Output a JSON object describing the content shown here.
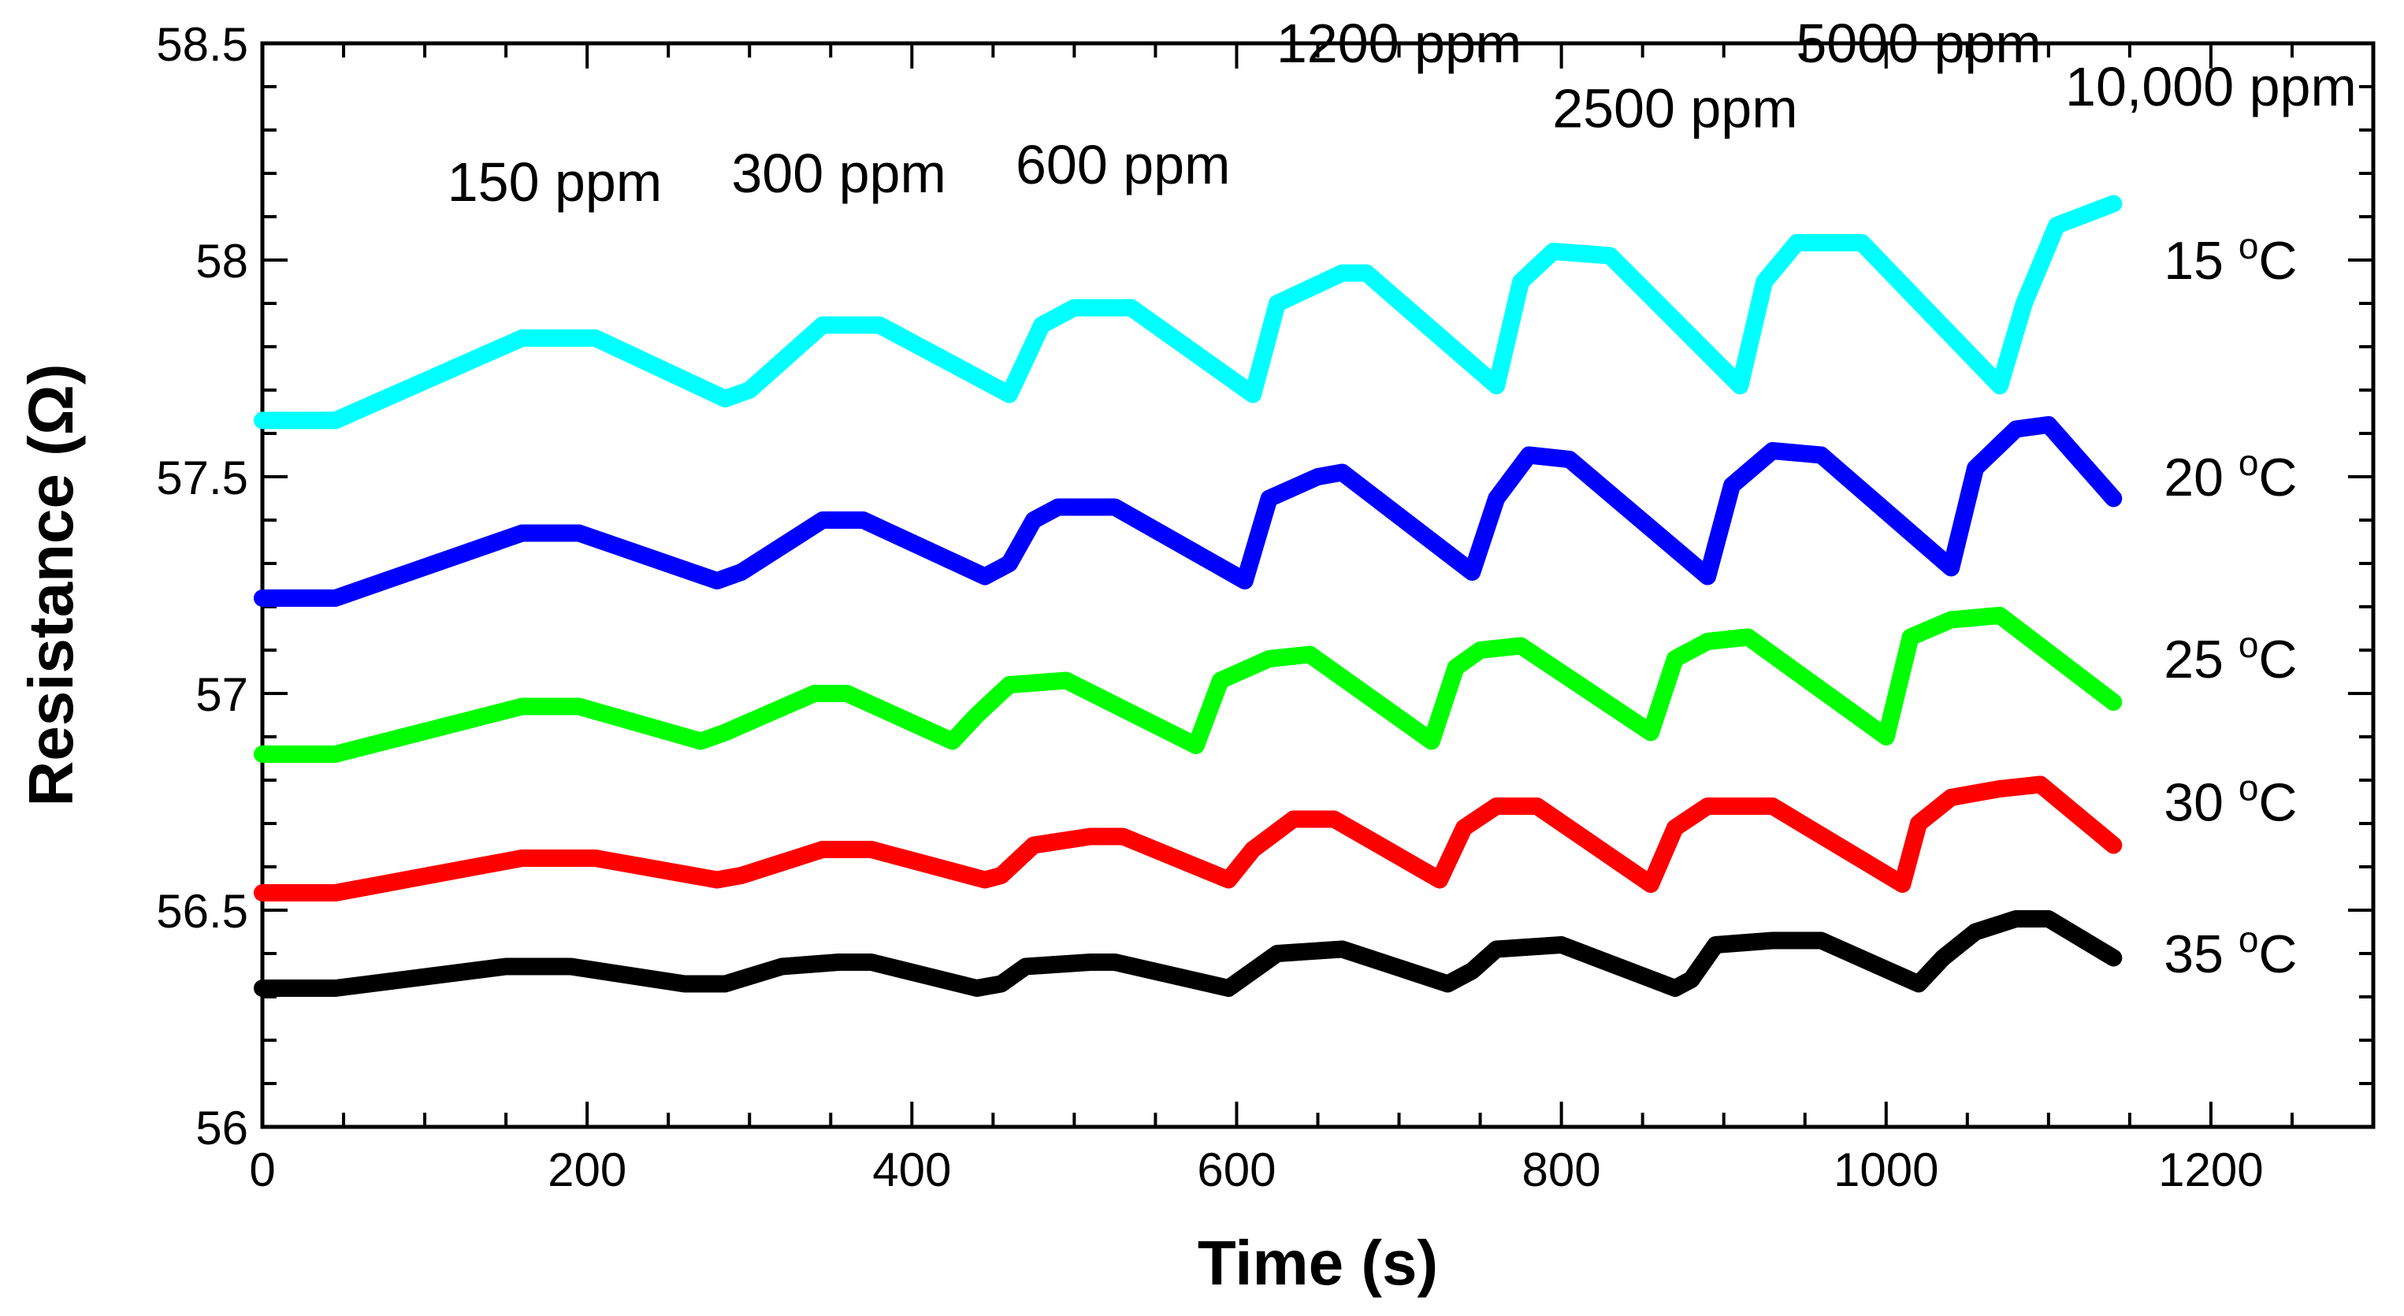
{
  "chart_data": {
    "type": "line",
    "title": "",
    "xlabel": "Time (s)",
    "ylabel": "Resistance (Ω)",
    "xlim": [
      0,
      1300
    ],
    "ylim": [
      56,
      58.5
    ],
    "xticks": [
      0,
      200,
      400,
      600,
      800,
      1000,
      1200
    ],
    "xtick_labels": [
      "0",
      "200",
      "400",
      "600",
      "800",
      "1000",
      "1200"
    ],
    "yticks": [
      56,
      56.5,
      57,
      57.5,
      58,
      58.5
    ],
    "ytick_labels": [
      "56",
      "56.5",
      "57",
      "57.5",
      "58",
      "58.5"
    ],
    "concentration_labels": [
      {
        "text": "150 ppm",
        "x": 180,
        "y": 58.18
      },
      {
        "text": "300 ppm",
        "x": 355,
        "y": 58.2
      },
      {
        "text": "600 ppm",
        "x": 530,
        "y": 58.22
      },
      {
        "text": "1200 ppm",
        "x": 700,
        "y": 58.5
      },
      {
        "text": "2500 ppm",
        "x": 870,
        "y": 58.35
      },
      {
        "text": "5000 ppm",
        "x": 1020,
        "y": 58.5
      },
      {
        "text": "10,000 ppm",
        "x": 1200,
        "y": 58.4
      }
    ],
    "series": [
      {
        "name": "15 °C",
        "temp_value": "15",
        "temp_unit": "C",
        "color": "#00FFFF",
        "label_y": 58.0,
        "points": [
          [
            0,
            57.63
          ],
          [
            45,
            57.63
          ],
          [
            160,
            57.82
          ],
          [
            205,
            57.82
          ],
          [
            285,
            57.68
          ],
          [
            300,
            57.7
          ],
          [
            345,
            57.85
          ],
          [
            380,
            57.85
          ],
          [
            460,
            57.69
          ],
          [
            480,
            57.85
          ],
          [
            500,
            57.89
          ],
          [
            535,
            57.89
          ],
          [
            610,
            57.69
          ],
          [
            625,
            57.9
          ],
          [
            665,
            57.97
          ],
          [
            680,
            57.97
          ],
          [
            760,
            57.71
          ],
          [
            775,
            57.95
          ],
          [
            795,
            58.02
          ],
          [
            830,
            58.01
          ],
          [
            910,
            57.71
          ],
          [
            925,
            57.95
          ],
          [
            945,
            58.04
          ],
          [
            985,
            58.04
          ],
          [
            1070,
            57.71
          ],
          [
            1085,
            57.9
          ],
          [
            1105,
            58.08
          ],
          [
            1140,
            58.13
          ]
        ]
      },
      {
        "name": "20 °C",
        "temp_value": "20",
        "temp_unit": "C",
        "color": "#0000FF",
        "label_y": 57.5,
        "points": [
          [
            0,
            57.22
          ],
          [
            45,
            57.22
          ],
          [
            160,
            57.37
          ],
          [
            195,
            57.37
          ],
          [
            280,
            57.26
          ],
          [
            295,
            57.28
          ],
          [
            345,
            57.4
          ],
          [
            370,
            57.4
          ],
          [
            445,
            57.27
          ],
          [
            460,
            57.3
          ],
          [
            475,
            57.4
          ],
          [
            490,
            57.43
          ],
          [
            525,
            57.43
          ],
          [
            605,
            57.26
          ],
          [
            620,
            57.45
          ],
          [
            650,
            57.5
          ],
          [
            665,
            57.51
          ],
          [
            745,
            57.28
          ],
          [
            760,
            57.45
          ],
          [
            780,
            57.55
          ],
          [
            805,
            57.54
          ],
          [
            890,
            57.27
          ],
          [
            905,
            57.48
          ],
          [
            930,
            57.56
          ],
          [
            960,
            57.55
          ],
          [
            1040,
            57.29
          ],
          [
            1055,
            57.52
          ],
          [
            1080,
            57.61
          ],
          [
            1100,
            57.62
          ],
          [
            1140,
            57.45
          ]
        ]
      },
      {
        "name": "25 °C",
        "temp_value": "25",
        "temp_unit": "C",
        "color": "#00FF00",
        "label_y": 57.08,
        "points": [
          [
            0,
            56.86
          ],
          [
            45,
            56.86
          ],
          [
            160,
            56.97
          ],
          [
            195,
            56.97
          ],
          [
            270,
            56.89
          ],
          [
            285,
            56.91
          ],
          [
            340,
            57.0
          ],
          [
            360,
            57.0
          ],
          [
            425,
            56.89
          ],
          [
            440,
            56.95
          ],
          [
            460,
            57.02
          ],
          [
            495,
            57.03
          ],
          [
            575,
            56.88
          ],
          [
            590,
            57.03
          ],
          [
            620,
            57.08
          ],
          [
            645,
            57.09
          ],
          [
            720,
            56.89
          ],
          [
            735,
            57.06
          ],
          [
            750,
            57.1
          ],
          [
            775,
            57.11
          ],
          [
            855,
            56.91
          ],
          [
            870,
            57.08
          ],
          [
            890,
            57.12
          ],
          [
            915,
            57.13
          ],
          [
            1000,
            56.9
          ],
          [
            1015,
            57.13
          ],
          [
            1040,
            57.17
          ],
          [
            1070,
            57.18
          ],
          [
            1140,
            56.98
          ]
        ]
      },
      {
        "name": "30 °C",
        "temp_value": "30",
        "temp_unit": "C",
        "color": "#FF0000",
        "label_y": 56.75,
        "points": [
          [
            0,
            56.54
          ],
          [
            45,
            56.54
          ],
          [
            160,
            56.62
          ],
          [
            205,
            56.62
          ],
          [
            280,
            56.57
          ],
          [
            295,
            56.58
          ],
          [
            345,
            56.64
          ],
          [
            375,
            56.64
          ],
          [
            445,
            56.57
          ],
          [
            455,
            56.58
          ],
          [
            475,
            56.65
          ],
          [
            510,
            56.67
          ],
          [
            530,
            56.67
          ],
          [
            595,
            56.57
          ],
          [
            610,
            56.64
          ],
          [
            635,
            56.71
          ],
          [
            660,
            56.71
          ],
          [
            725,
            56.57
          ],
          [
            740,
            56.69
          ],
          [
            760,
            56.74
          ],
          [
            785,
            56.74
          ],
          [
            855,
            56.56
          ],
          [
            870,
            56.69
          ],
          [
            890,
            56.74
          ],
          [
            930,
            56.74
          ],
          [
            1010,
            56.56
          ],
          [
            1020,
            56.7
          ],
          [
            1040,
            56.76
          ],
          [
            1070,
            56.78
          ],
          [
            1095,
            56.79
          ],
          [
            1140,
            56.65
          ]
        ]
      },
      {
        "name": "35 °C",
        "temp_value": "35",
        "temp_unit": "C",
        "color": "#000000",
        "label_y": 56.4,
        "points": [
          [
            0,
            56.32
          ],
          [
            45,
            56.32
          ],
          [
            150,
            56.37
          ],
          [
            190,
            56.37
          ],
          [
            260,
            56.33
          ],
          [
            285,
            56.33
          ],
          [
            320,
            56.37
          ],
          [
            355,
            56.38
          ],
          [
            375,
            56.38
          ],
          [
            440,
            56.32
          ],
          [
            455,
            56.33
          ],
          [
            470,
            56.37
          ],
          [
            510,
            56.38
          ],
          [
            525,
            56.38
          ],
          [
            595,
            56.32
          ],
          [
            610,
            56.36
          ],
          [
            625,
            56.4
          ],
          [
            665,
            56.41
          ],
          [
            730,
            56.33
          ],
          [
            745,
            56.36
          ],
          [
            760,
            56.41
          ],
          [
            800,
            56.42
          ],
          [
            870,
            56.32
          ],
          [
            880,
            56.34
          ],
          [
            895,
            56.42
          ],
          [
            930,
            56.43
          ],
          [
            960,
            56.43
          ],
          [
            1020,
            56.33
          ],
          [
            1035,
            56.39
          ],
          [
            1055,
            56.45
          ],
          [
            1080,
            56.48
          ],
          [
            1100,
            56.48
          ],
          [
            1140,
            56.39
          ]
        ]
      }
    ]
  }
}
